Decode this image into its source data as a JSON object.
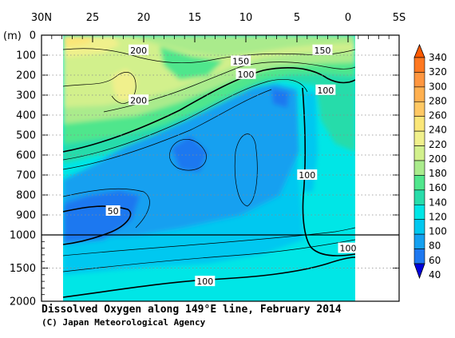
{
  "chart_data": {
    "type": "heatmap",
    "title": "Dissolved Oxygen along 149°E line, February 2014",
    "credit": "(C) Japan Meteorological Agency",
    "y_unit_label": "(m)",
    "x_axis": {
      "ticks": [
        "30N",
        "25",
        "20",
        "15",
        "10",
        "5",
        "0",
        "5S"
      ],
      "tick_values": [
        30,
        25,
        20,
        15,
        10,
        5,
        0,
        -5
      ],
      "range": [
        30,
        -5
      ]
    },
    "y_axis_upper": {
      "ticks": [
        "0",
        "100",
        "200",
        "300",
        "400",
        "500",
        "600",
        "700",
        "800",
        "900",
        "1000"
      ],
      "tick_values": [
        0,
        100,
        200,
        300,
        400,
        500,
        600,
        700,
        800,
        900,
        1000
      ],
      "range": [
        0,
        1000
      ]
    },
    "y_axis_lower": {
      "ticks": [
        "1500",
        "2000"
      ],
      "tick_values": [
        1500,
        2000
      ],
      "range": [
        1000,
        2000
      ]
    },
    "data_extent": {
      "lat_north": 28,
      "lat_south": -1
    },
    "colorbar": {
      "labels": [
        "340",
        "320",
        "300",
        "280",
        "260",
        "240",
        "220",
        "200",
        "180",
        "160",
        "140",
        "120",
        "100",
        "80",
        "60",
        "40"
      ],
      "levels": [
        340,
        320,
        300,
        280,
        260,
        240,
        220,
        200,
        180,
        160,
        140,
        120,
        100,
        80,
        60,
        40
      ],
      "colors": [
        "#ff5a00",
        "#ff7820",
        "#ff9640",
        "#ffb050",
        "#ffc864",
        "#fae678",
        "#f0f08c",
        "#d2f08c",
        "#aaeb8c",
        "#50e68c",
        "#28dcaa",
        "#00e6e6",
        "#00c8f0",
        "#14a0f0",
        "#1e78f0",
        "#0000dc"
      ]
    },
    "contour_labels": [
      {
        "text": "200",
        "lat": 20.5,
        "depth": 75
      },
      {
        "text": "200",
        "lat": 20.5,
        "depth": 325
      },
      {
        "text": "150",
        "lat": 10.5,
        "depth": 130
      },
      {
        "text": "100",
        "lat": 10,
        "depth": 195
      },
      {
        "text": "150",
        "lat": 2.5,
        "depth": 75
      },
      {
        "text": "100",
        "lat": 2.2,
        "depth": 275
      },
      {
        "text": "100",
        "lat": 4,
        "depth": 700
      },
      {
        "text": "50",
        "lat": 23,
        "depth": 880
      },
      {
        "text": "100",
        "lat": 0,
        "depth": 1200
      },
      {
        "text": "100",
        "lat": 14,
        "depth": 1700
      }
    ]
  }
}
